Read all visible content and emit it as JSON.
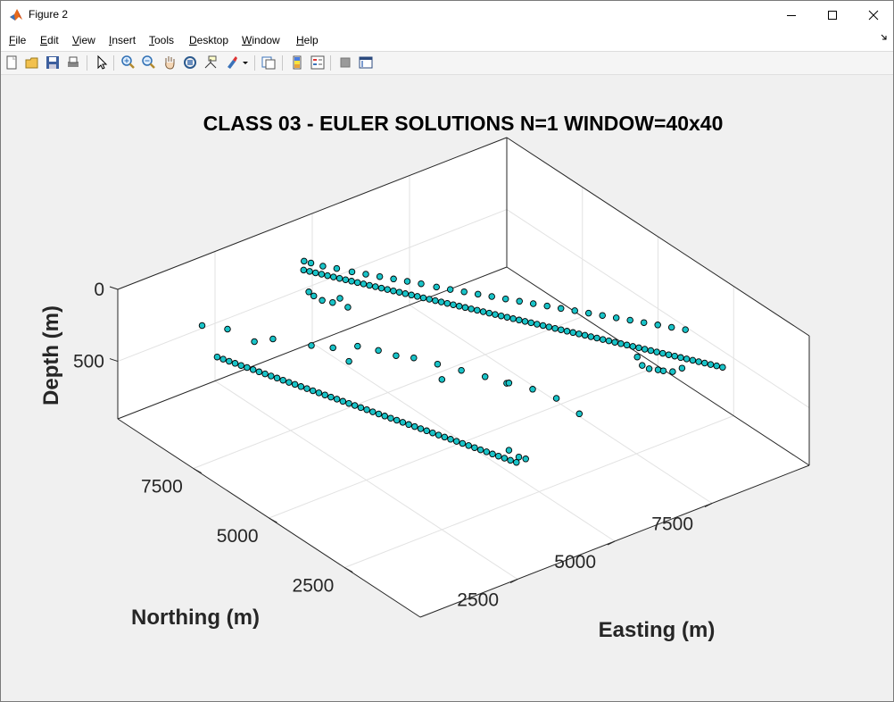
{
  "window": {
    "title": "Figure 2",
    "controls": [
      "minimize",
      "maximize",
      "close"
    ]
  },
  "menu": [
    {
      "label": "File",
      "accel": "F",
      "rest": "ile"
    },
    {
      "label": "Edit",
      "accel": "E",
      "rest": "dit"
    },
    {
      "label": "View",
      "accel": "V",
      "rest": "iew"
    },
    {
      "label": "Insert",
      "accel": "I",
      "rest": "nsert"
    },
    {
      "label": "Tools",
      "accel": "T",
      "rest": "ools"
    },
    {
      "label": "Desktop",
      "accel": "D",
      "rest": "esktop"
    },
    {
      "label": "Window",
      "accel": "W",
      "rest": "indow"
    },
    {
      "label": "Help",
      "accel": "H",
      "rest": "elp"
    }
  ],
  "toolbar": [
    "new-figure-icon",
    "open-file-icon",
    "save-icon",
    "print-icon",
    "edit-plot-icon",
    "zoom-in-icon",
    "zoom-out-icon",
    "pan-icon",
    "rotate-3d-icon",
    "data-cursor-icon",
    "brush-icon",
    "link-plot-icon",
    "insert-colorbar-icon",
    "insert-legend-icon",
    "hide-plot-tools-icon",
    "show-plot-tools-icon"
  ],
  "colors": {
    "marker_face": "#19c3c8",
    "marker_edge": "#000000",
    "axes_bg": "#ffffff",
    "figure_bg": "#f0f0f0"
  },
  "chart_data": {
    "type": "scatter3d",
    "title": "CLASS 03 - EULER SOLUTIONS N=1 WINDOW=40x40",
    "xlabel": "Easting (m)",
    "ylabel": "Northing (m)",
    "zlabel": "Depth (m)",
    "xlim": [
      0,
      10000
    ],
    "ylim": [
      0,
      10000
    ],
    "zlim": [
      0,
      900
    ],
    "z_reversed": true,
    "grid": true,
    "xticks": [
      2500,
      5000,
      7500
    ],
    "yticks": [
      2500,
      5000,
      7500
    ],
    "zticks": [
      0,
      500
    ],
    "series": [
      {
        "points": [
          [
            4000,
            9000,
            150
          ],
          [
            4080,
            8905,
            155
          ],
          [
            4160,
            8810,
            160
          ],
          [
            4240,
            8715,
            165
          ],
          [
            4320,
            8620,
            170
          ],
          [
            4400,
            8525,
            175
          ],
          [
            4480,
            8430,
            180
          ],
          [
            4560,
            8335,
            185
          ],
          [
            4640,
            8240,
            190
          ],
          [
            4720,
            8145,
            195
          ],
          [
            4800,
            8050,
            200
          ],
          [
            4880,
            7955,
            205
          ],
          [
            4960,
            7860,
            210
          ],
          [
            5040,
            7765,
            215
          ],
          [
            5120,
            7670,
            220
          ],
          [
            5200,
            7575,
            225
          ],
          [
            5280,
            7480,
            230
          ],
          [
            5360,
            7385,
            235
          ],
          [
            5440,
            7290,
            240
          ],
          [
            5520,
            7195,
            245
          ],
          [
            5600,
            7100,
            250
          ],
          [
            5680,
            7005,
            255
          ],
          [
            5760,
            6910,
            260
          ],
          [
            5840,
            6815,
            265
          ],
          [
            5920,
            6720,
            270
          ],
          [
            6000,
            6625,
            275
          ],
          [
            6080,
            6530,
            280
          ],
          [
            6160,
            6435,
            285
          ],
          [
            6240,
            6340,
            290
          ],
          [
            6320,
            6245,
            295
          ],
          [
            6400,
            6150,
            300
          ],
          [
            6480,
            6055,
            305
          ],
          [
            6560,
            5960,
            310
          ],
          [
            6640,
            5865,
            315
          ],
          [
            6720,
            5770,
            320
          ],
          [
            6800,
            5675,
            325
          ],
          [
            6880,
            5580,
            330
          ],
          [
            6960,
            5485,
            335
          ],
          [
            7040,
            5390,
            340
          ],
          [
            7120,
            5295,
            345
          ],
          [
            7200,
            5200,
            350
          ],
          [
            7280,
            5105,
            355
          ],
          [
            7360,
            5010,
            360
          ],
          [
            7440,
            4915,
            365
          ],
          [
            7520,
            4820,
            370
          ],
          [
            7600,
            4725,
            375
          ],
          [
            7680,
            4630,
            380
          ],
          [
            7760,
            4535,
            385
          ],
          [
            7840,
            4440,
            390
          ],
          [
            7920,
            4345,
            395
          ],
          [
            8000,
            4250,
            400
          ],
          [
            8080,
            4155,
            405
          ],
          [
            8160,
            4060,
            410
          ],
          [
            8240,
            3965,
            415
          ],
          [
            8320,
            3870,
            420
          ],
          [
            8400,
            3775,
            425
          ],
          [
            8480,
            3680,
            430
          ],
          [
            8560,
            3585,
            435
          ],
          [
            8640,
            3490,
            440
          ],
          [
            8720,
            3395,
            445
          ],
          [
            8800,
            3300,
            450
          ],
          [
            8880,
            3205,
            455
          ],
          [
            8960,
            3110,
            460
          ],
          [
            9040,
            3015,
            465
          ],
          [
            9120,
            2920,
            470
          ],
          [
            9200,
            2825,
            475
          ],
          [
            9280,
            2730,
            480
          ],
          [
            9360,
            2635,
            485
          ],
          [
            9440,
            2540,
            490
          ],
          [
            9520,
            2445,
            495
          ],
          [
            9600,
            2350,
            500
          ],
          [
            4050,
            9050,
            100
          ],
          [
            4150,
            8950,
            110
          ],
          [
            4300,
            8750,
            120
          ],
          [
            4500,
            8550,
            130
          ],
          [
            4700,
            8300,
            140
          ],
          [
            4900,
            8100,
            150
          ],
          [
            5100,
            7900,
            160
          ],
          [
            5300,
            7700,
            170
          ],
          [
            5500,
            7500,
            180
          ],
          [
            5700,
            7300,
            190
          ],
          [
            5900,
            7050,
            200
          ],
          [
            6100,
            6850,
            210
          ],
          [
            6300,
            6650,
            220
          ],
          [
            6500,
            6450,
            230
          ],
          [
            6700,
            6250,
            240
          ],
          [
            6900,
            6050,
            250
          ],
          [
            7100,
            5850,
            260
          ],
          [
            7300,
            5650,
            270
          ],
          [
            7500,
            5450,
            280
          ],
          [
            7700,
            5250,
            290
          ],
          [
            7900,
            5050,
            300
          ],
          [
            8100,
            4850,
            310
          ],
          [
            8300,
            4650,
            320
          ],
          [
            8500,
            4450,
            330
          ],
          [
            8700,
            4250,
            340
          ],
          [
            8900,
            4050,
            350
          ],
          [
            9100,
            3850,
            360
          ],
          [
            9300,
            3650,
            370
          ],
          [
            9500,
            3450,
            380
          ],
          [
            3900,
            8700,
            250
          ],
          [
            3950,
            8600,
            270
          ],
          [
            4050,
            8450,
            290
          ],
          [
            4200,
            8300,
            300
          ],
          [
            4350,
            8250,
            280
          ],
          [
            4400,
            8050,
            320
          ],
          [
            8300,
            3500,
            450
          ],
          [
            8350,
            3400,
            500
          ],
          [
            8450,
            3300,
            520
          ],
          [
            8600,
            3200,
            530
          ],
          [
            8700,
            3150,
            540
          ],
          [
            8900,
            3100,
            560
          ],
          [
            9100,
            3050,
            550
          ],
          [
            1000,
            8000,
            300
          ],
          [
            1080,
            7905,
            310
          ],
          [
            1160,
            7810,
            320
          ],
          [
            1240,
            7715,
            330
          ],
          [
            1320,
            7620,
            340
          ],
          [
            1400,
            7525,
            350
          ],
          [
            1480,
            7430,
            360
          ],
          [
            1560,
            7335,
            370
          ],
          [
            1640,
            7240,
            380
          ],
          [
            1720,
            7145,
            390
          ],
          [
            1800,
            7050,
            400
          ],
          [
            1880,
            6955,
            410
          ],
          [
            1960,
            6860,
            420
          ],
          [
            2040,
            6765,
            430
          ],
          [
            2120,
            6670,
            440
          ],
          [
            2200,
            6575,
            450
          ],
          [
            2280,
            6480,
            460
          ],
          [
            2360,
            6385,
            470
          ],
          [
            2440,
            6290,
            480
          ],
          [
            2520,
            6195,
            490
          ],
          [
            2600,
            6100,
            500
          ],
          [
            2680,
            6005,
            510
          ],
          [
            2760,
            5910,
            520
          ],
          [
            2840,
            5815,
            530
          ],
          [
            2920,
            5720,
            540
          ],
          [
            3000,
            5625,
            550
          ],
          [
            3080,
            5530,
            560
          ],
          [
            3160,
            5435,
            570
          ],
          [
            3240,
            5340,
            580
          ],
          [
            3320,
            5245,
            590
          ],
          [
            3400,
            5150,
            600
          ],
          [
            3480,
            5055,
            610
          ],
          [
            3560,
            4960,
            620
          ],
          [
            3640,
            4865,
            630
          ],
          [
            3720,
            4770,
            640
          ],
          [
            3800,
            4675,
            650
          ],
          [
            3880,
            4580,
            660
          ],
          [
            3960,
            4485,
            670
          ],
          [
            4040,
            4390,
            680
          ],
          [
            4120,
            4295,
            690
          ],
          [
            4200,
            4200,
            700
          ],
          [
            4280,
            4105,
            710
          ],
          [
            4360,
            4010,
            720
          ],
          [
            4440,
            3915,
            730
          ],
          [
            4520,
            3820,
            740
          ],
          [
            4600,
            3725,
            750
          ],
          [
            4680,
            3630,
            760
          ],
          [
            4760,
            3535,
            770
          ],
          [
            4840,
            3440,
            780
          ],
          [
            4920,
            3345,
            790
          ],
          [
            5000,
            3250,
            800
          ],
          [
            1000,
            8500,
            150
          ],
          [
            1500,
            8300,
            200
          ],
          [
            1800,
            7800,
            250
          ],
          [
            2200,
            7700,
            260
          ],
          [
            2800,
            7200,
            300
          ],
          [
            3200,
            7000,
            330
          ],
          [
            3300,
            6600,
            380
          ],
          [
            3600,
            6700,
            320
          ],
          [
            3900,
            6400,
            340
          ],
          [
            4200,
            6200,
            380
          ],
          [
            4500,
            6000,
            400
          ],
          [
            4800,
            5600,
            420
          ],
          [
            5100,
            5200,
            440
          ],
          [
            5400,
            4800,
            460
          ],
          [
            5700,
            4400,
            480
          ],
          [
            6000,
            4000,
            500
          ],
          [
            6300,
            3600,
            540
          ],
          [
            6500,
            3100,
            600
          ],
          [
            5800,
            4600,
            520
          ],
          [
            4600,
            5200,
            450
          ],
          [
            5000,
            3500,
            750
          ],
          [
            5100,
            3300,
            780
          ],
          [
            5200,
            3200,
            790
          ]
        ]
      }
    ]
  }
}
